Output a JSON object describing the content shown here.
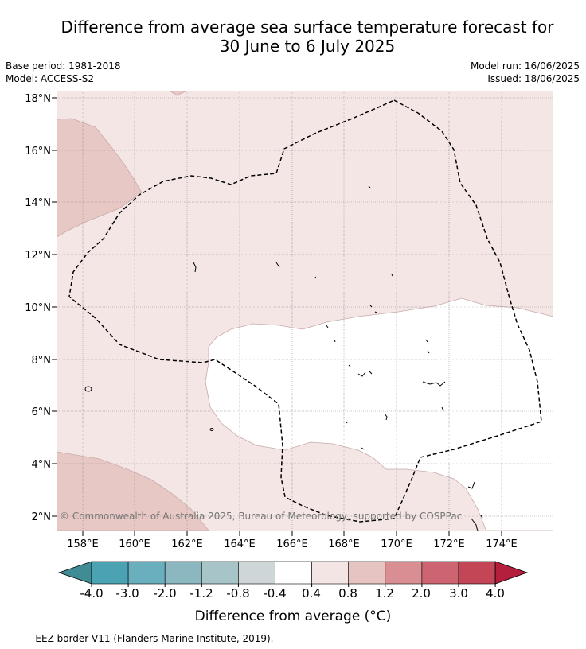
{
  "title": {
    "line1": "Difference from average sea surface temperature forecast for",
    "line2": "30 June to 6 July 2025"
  },
  "meta": {
    "base_period": "Base period: 1981-2018",
    "model": "Model: ACCESS-S2",
    "model_run": "Model run: 16/06/2025",
    "issued": "Issued: 18/06/2025"
  },
  "map": {
    "lat_labels": [
      "18°N",
      "16°N",
      "14°N",
      "12°N",
      "10°N",
      "8°N",
      "6°N",
      "4°N",
      "2°N"
    ],
    "lon_labels": [
      "158°E",
      "160°E",
      "162°E",
      "164°E",
      "166°E",
      "168°E",
      "170°E",
      "172°E",
      "174°E"
    ],
    "copyright": "© Commonwealth of Australia 2025, Bureau of Meteorology, supported by COSPPac"
  },
  "colorbar": {
    "ticks": [
      "-4.0",
      "-3.0",
      "-2.0",
      "-1.2",
      "-0.8",
      "-0.4",
      "0.4",
      "0.8",
      "1.2",
      "2.0",
      "3.0",
      "4.0"
    ],
    "colors": [
      "#3f8c95",
      "#4aa2b3",
      "#6aafbe",
      "#8bb7c1",
      "#a7c5c9",
      "#cfd6d7",
      "#ffffff",
      "#f3e5e4",
      "#e6c4c1",
      "#d98e94",
      "#cc6571",
      "#c24656",
      "#b41f3e"
    ],
    "label": "Difference from average (°C)"
  },
  "footnote": "-- -- -- EEZ border V11 (Flanders Marine Institute, 2019)."
}
